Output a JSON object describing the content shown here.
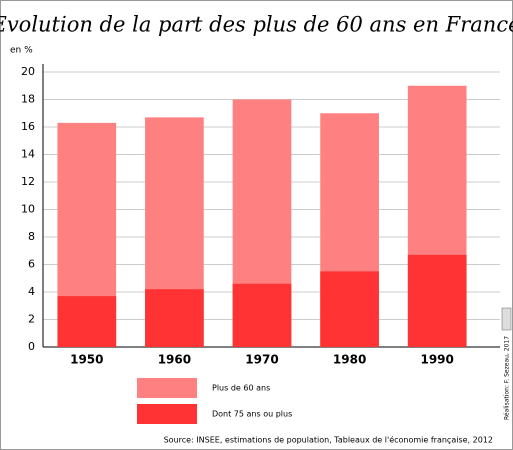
{
  "chart_data": {
    "type": "bar",
    "title": "Evolution de la part des plus de 60 ans en France",
    "y_label": "en %",
    "categories": [
      "1950",
      "1960",
      "1970",
      "1980",
      "1990"
    ],
    "series": [
      {
        "name": "Plus de 60 ans",
        "color": "#ff8080",
        "values": [
          16.3,
          16.7,
          18.0,
          17.0,
          19.0
        ]
      },
      {
        "name": "Dont 75 ans ou plus",
        "color": "#ff3333",
        "values": [
          3.7,
          4.2,
          4.6,
          5.5,
          6.7
        ]
      }
    ],
    "ylim": [
      0,
      20
    ],
    "yticks": [
      0,
      2,
      4,
      6,
      8,
      10,
      12,
      14,
      16,
      18,
      20
    ],
    "grid": true,
    "source": "Source: INSEE, estimations de population, Tableaux de l'économie française, 2012",
    "credit": "Réalisation: F. Sezeau, 2017"
  }
}
